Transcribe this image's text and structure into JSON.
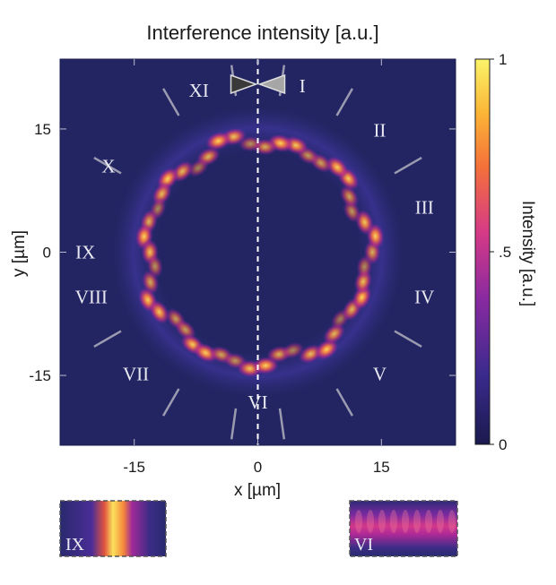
{
  "chart_data": {
    "type": "heatmap",
    "title": "Interference intensity [a.u.]",
    "xlabel": "x [µm]",
    "ylabel": "y [µm]",
    "xlim": [
      -24,
      24
    ],
    "ylim": [
      -23.5,
      23.5
    ],
    "x_ticks": [
      -15,
      0,
      15
    ],
    "x_tick_labels": [
      "-15",
      "0",
      "15"
    ],
    "y_ticks": [
      15,
      0,
      -15
    ],
    "y_tick_labels": [
      "15",
      "0",
      "-15"
    ],
    "colorbar": {
      "label": "Intensity [a.u.]",
      "range": [
        0,
        1
      ],
      "ticks": [
        1,
        0.5,
        0
      ],
      "tick_labels": [
        "1",
        ".5",
        "0"
      ],
      "colors": [
        "#1a1a4e",
        "#3a2a8c",
        "#8a2aa0",
        "#d53a86",
        "#f4703a",
        "#fbb536",
        "#fbf46a"
      ]
    },
    "ring": {
      "center": [
        0,
        0
      ],
      "radius_um": 13.5
    },
    "sectors": [
      {
        "label": "I",
        "angle_deg": 75
      },
      {
        "label": "II",
        "angle_deg": 45
      },
      {
        "label": "III",
        "angle_deg": 15
      },
      {
        "label": "IV",
        "angle_deg": -15
      },
      {
        "label": "V",
        "angle_deg": -45
      },
      {
        "label": "VI",
        "angle_deg": -90
      },
      {
        "label": "VII",
        "angle_deg": -135
      },
      {
        "label": "VIII",
        "angle_deg": -165
      },
      {
        "label": "IX",
        "angle_deg": 180
      },
      {
        "label": "X",
        "angle_deg": 150
      },
      {
        "label": "XI",
        "angle_deg": 110
      }
    ],
    "insets": [
      {
        "label": "IX",
        "description": "bright vertical fringe"
      },
      {
        "label": "VI",
        "description": "horizontal band with periodic fringes"
      }
    ]
  }
}
